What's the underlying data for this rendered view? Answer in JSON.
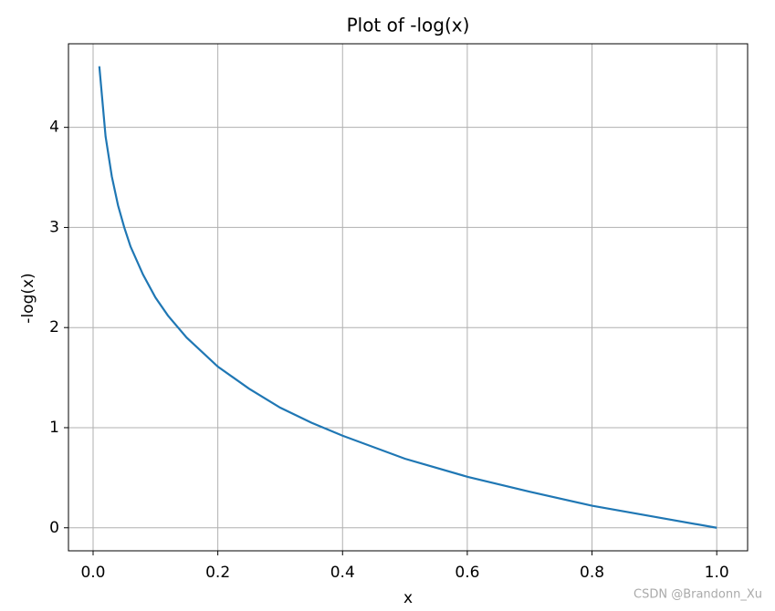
{
  "chart_data": {
    "type": "line",
    "title": "Plot of -log(x)",
    "x_label": "x",
    "y_label": "-log(x)",
    "x": [
      0.01,
      0.02,
      0.03,
      0.04,
      0.05,
      0.06,
      0.08,
      0.1,
      0.12,
      0.15,
      0.2,
      0.25,
      0.3,
      0.35,
      0.4,
      0.5,
      0.6,
      0.7,
      0.8,
      0.9,
      1.0
    ],
    "series": [
      {
        "name": "-log(x)",
        "color": "#1f77b4",
        "values": [
          4.61,
          3.91,
          3.51,
          3.22,
          3.0,
          2.81,
          2.53,
          2.3,
          2.12,
          1.9,
          1.61,
          1.39,
          1.2,
          1.05,
          0.92,
          0.69,
          0.51,
          0.36,
          0.22,
          0.11,
          0
        ]
      }
    ],
    "xlim": [
      -0.0395,
      1.0495
    ],
    "ylim": [
      -0.23,
      4.835
    ],
    "xticks": [
      {
        "value": 0,
        "label": "0.0"
      },
      0.2,
      0.4,
      0.6,
      0.8,
      {
        "value": 1,
        "label": "1.0"
      }
    ],
    "yticks": [
      0,
      1,
      2,
      3,
      4
    ],
    "grid": true,
    "watermark": "CSDN @Brandonn_Xu"
  }
}
